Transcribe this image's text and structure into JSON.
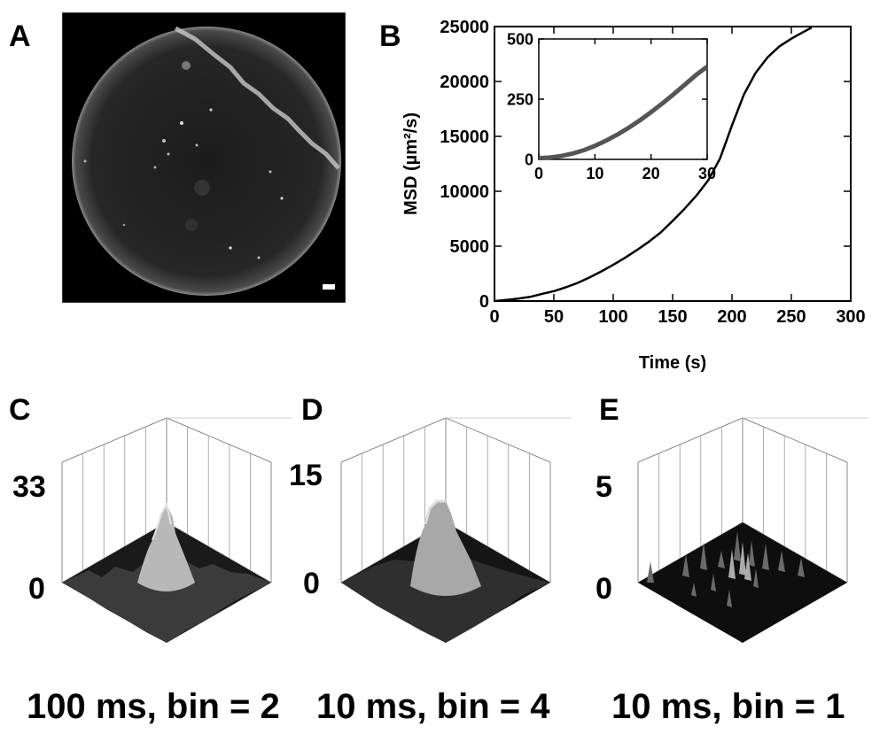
{
  "panels": {
    "A": {
      "letter": "A"
    },
    "B": {
      "letter": "B"
    },
    "C": {
      "letter": "C",
      "z_max": "33",
      "z_min": "0",
      "caption": "100 ms, bin = 2"
    },
    "D": {
      "letter": "D",
      "z_max": "15",
      "z_min": "0",
      "caption": "10 ms, bin = 4"
    },
    "E": {
      "letter": "E",
      "z_max": "5",
      "z_min": "0",
      "caption": "10 ms, bin = 1"
    }
  },
  "chart_data": [
    {
      "type": "line",
      "panel": "B",
      "xlabel": "Time (s)",
      "ylabel": "MSD (µm²/s)",
      "xlim": [
        0,
        300
      ],
      "ylim": [
        0,
        25000
      ],
      "xticks": [
        0,
        50,
        100,
        150,
        200,
        250,
        300
      ],
      "yticks": [
        0,
        5000,
        10000,
        15000,
        20000,
        25000
      ],
      "series": [
        {
          "x": [
            0,
            10,
            20,
            30,
            40,
            50,
            60,
            70,
            80,
            90,
            100,
            110,
            120,
            130,
            140,
            150,
            160,
            170,
            180,
            190,
            200,
            210,
            220,
            230,
            240,
            250,
            260,
            267
          ],
          "values": [
            0,
            100,
            220,
            380,
            650,
            900,
            1250,
            1650,
            2150,
            2700,
            3300,
            3950,
            4650,
            5400,
            6250,
            7300,
            8400,
            9600,
            11000,
            13000,
            16000,
            18800,
            20800,
            22200,
            23200,
            23900,
            24500,
            24900
          ]
        }
      ]
    },
    {
      "type": "line",
      "panel": "B-inset",
      "xlim": [
        0,
        30
      ],
      "ylim": [
        0,
        500
      ],
      "xticks": [
        0,
        10,
        20,
        30
      ],
      "yticks": [
        0,
        250,
        500
      ],
      "series": [
        {
          "x": [
            0,
            2,
            4,
            6,
            8,
            10,
            12,
            14,
            16,
            18,
            20,
            22,
            24,
            26,
            28,
            30
          ],
          "values": [
            5,
            8,
            14,
            24,
            38,
            56,
            78,
            103,
            131,
            162,
            196,
            232,
            270,
            310,
            350,
            385
          ]
        }
      ]
    }
  ]
}
